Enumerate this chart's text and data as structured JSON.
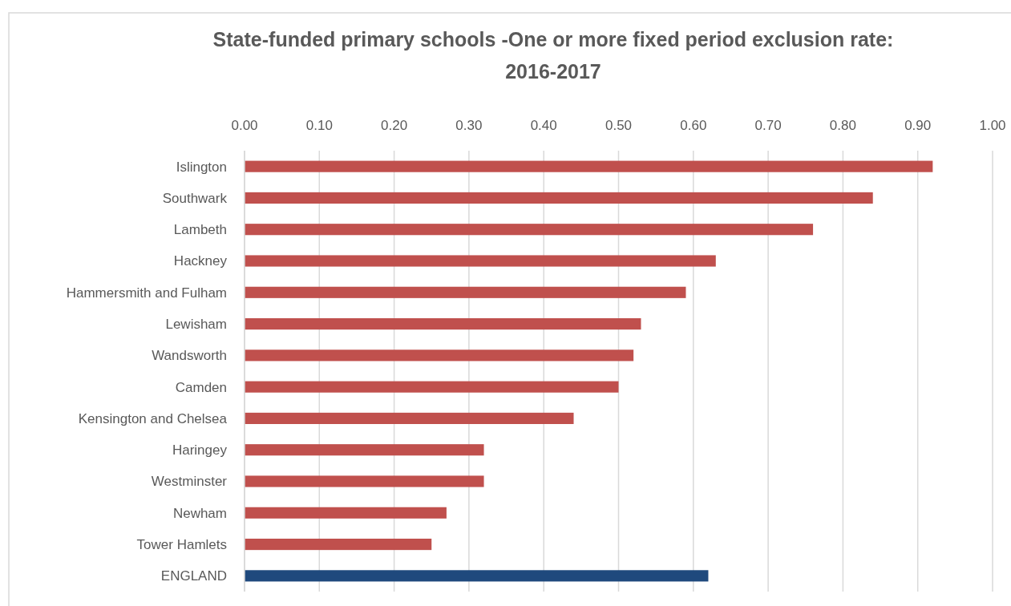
{
  "chart_data": {
    "type": "bar",
    "orientation": "horizontal",
    "title": "State-funded primary schools -One or more fixed period exclusion rate: 2016-2017",
    "categories": [
      "Islington",
      "Southwark",
      "Lambeth",
      "Hackney",
      "Hammersmith and Fulham",
      "Lewisham",
      "Wandsworth",
      "Camden",
      "Kensington and Chelsea",
      "Haringey",
      "Westminster",
      "Newham",
      "Tower Hamlets",
      "ENGLAND"
    ],
    "values": [
      0.92,
      0.84,
      0.76,
      0.63,
      0.59,
      0.53,
      0.52,
      0.5,
      0.44,
      0.32,
      0.32,
      0.27,
      0.25,
      0.62
    ],
    "colors": [
      "#c0504d",
      "#c0504d",
      "#c0504d",
      "#c0504d",
      "#c0504d",
      "#c0504d",
      "#c0504d",
      "#c0504d",
      "#c0504d",
      "#c0504d",
      "#c0504d",
      "#c0504d",
      "#c0504d",
      "#1f497d"
    ],
    "xlim": [
      0,
      1
    ],
    "xticks": [
      {
        "value": 0,
        "label": "0.00"
      },
      {
        "value": 0.1,
        "label": "0.10"
      },
      {
        "value": 0.2,
        "label": "0.20"
      },
      {
        "value": 0.3,
        "label": "0.30"
      },
      {
        "value": 0.4,
        "label": "0.40"
      },
      {
        "value": 0.5,
        "label": "0.50"
      },
      {
        "value": 0.6,
        "label": "0.60"
      },
      {
        "value": 0.7,
        "label": "0.70"
      },
      {
        "value": 0.8,
        "label": "0.80"
      },
      {
        "value": 0.9,
        "label": "0.90"
      },
      {
        "value": 1,
        "label": "1.00"
      }
    ],
    "grid": "x"
  }
}
